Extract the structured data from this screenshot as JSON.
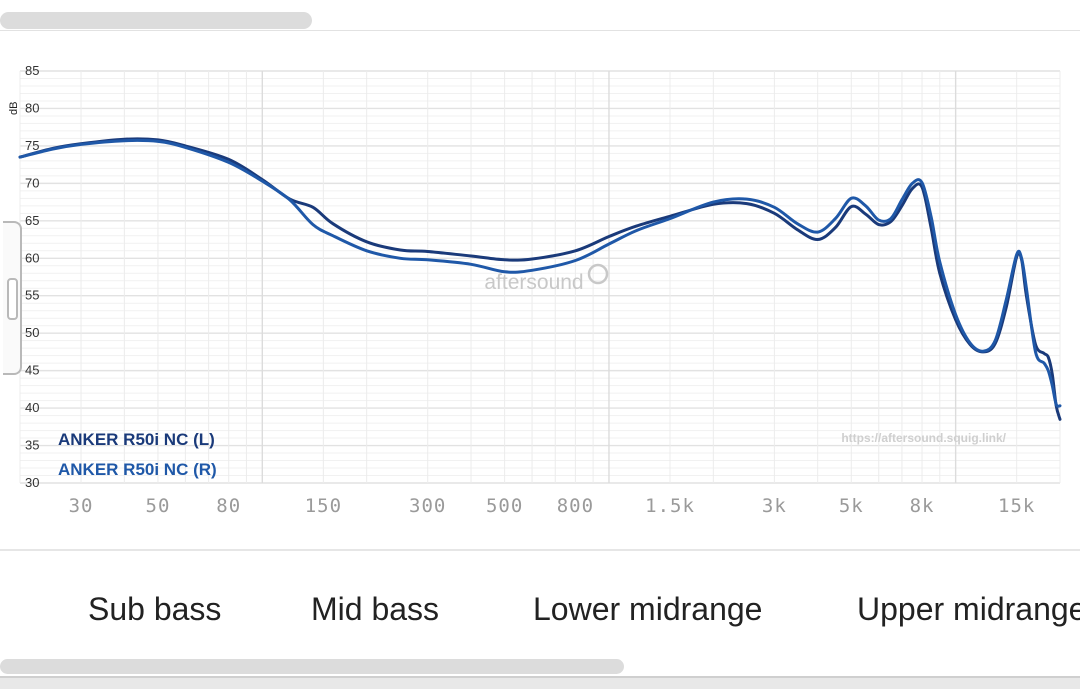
{
  "chart_data": {
    "type": "line",
    "title": "",
    "ylabel": "dB",
    "xlabel": "",
    "x_scale": "log",
    "ylim": [
      30,
      85
    ],
    "xlim": [
      20,
      20000
    ],
    "y_ticks": [
      "85",
      "80",
      "75",
      "70",
      "65",
      "60",
      "55",
      "50",
      "45",
      "40",
      "35",
      "30"
    ],
    "y_tick_values": [
      85,
      80,
      75,
      70,
      65,
      60,
      55,
      50,
      45,
      40,
      35,
      30
    ],
    "x_ticks": [
      "30",
      "50",
      "80",
      "150",
      "300",
      "500",
      "800",
      "1.5k",
      "3k",
      "5k",
      "8k",
      "15k"
    ],
    "x_tick_values": [
      30,
      50,
      80,
      150,
      300,
      500,
      800,
      1500,
      3000,
      5000,
      8000,
      15000
    ],
    "watermark": "aftersound",
    "source_url": "https://aftersound.squig.link/",
    "series": [
      {
        "name": "ANKER R50i NC (L)",
        "color": "#1a3a7a",
        "points": [
          [
            20,
            73.5
          ],
          [
            25,
            74.7
          ],
          [
            30,
            75.3
          ],
          [
            40,
            75.9
          ],
          [
            50,
            75.8
          ],
          [
            60,
            75.0
          ],
          [
            80,
            73.2
          ],
          [
            100,
            70.5
          ],
          [
            120,
            67.9
          ],
          [
            140,
            66.8
          ],
          [
            160,
            64.6
          ],
          [
            200,
            62.2
          ],
          [
            250,
            61.1
          ],
          [
            300,
            60.9
          ],
          [
            400,
            60.3
          ],
          [
            500,
            59.8
          ],
          [
            600,
            59.9
          ],
          [
            800,
            61.0
          ],
          [
            1000,
            62.9
          ],
          [
            1200,
            64.3
          ],
          [
            1500,
            65.6
          ],
          [
            2000,
            67.2
          ],
          [
            2500,
            67.3
          ],
          [
            3000,
            66.0
          ],
          [
            3500,
            63.8
          ],
          [
            4000,
            62.5
          ],
          [
            4500,
            64.1
          ],
          [
            5000,
            66.9
          ],
          [
            5500,
            65.9
          ],
          [
            6000,
            64.5
          ],
          [
            6500,
            64.9
          ],
          [
            7000,
            67.0
          ],
          [
            7500,
            69.3
          ],
          [
            8000,
            69.5
          ],
          [
            8500,
            64.0
          ],
          [
            9000,
            58.0
          ],
          [
            10000,
            51.8
          ],
          [
            11000,
            48.5
          ],
          [
            12000,
            47.5
          ],
          [
            13000,
            48.6
          ],
          [
            14000,
            53.5
          ],
          [
            15000,
            60.2
          ],
          [
            15500,
            59.8
          ],
          [
            16000,
            55.0
          ],
          [
            17000,
            48.5
          ],
          [
            18000,
            47.3
          ],
          [
            18500,
            46.8
          ],
          [
            19000,
            44.5
          ],
          [
            19500,
            40.3
          ],
          [
            20000,
            38.5
          ]
        ]
      },
      {
        "name": "ANKER R50i NC (R)",
        "color": "#1f58a8",
        "points": [
          [
            20,
            73.5
          ],
          [
            25,
            74.6
          ],
          [
            30,
            75.2
          ],
          [
            40,
            75.7
          ],
          [
            50,
            75.6
          ],
          [
            60,
            74.8
          ],
          [
            80,
            72.8
          ],
          [
            100,
            70.3
          ],
          [
            120,
            67.8
          ],
          [
            140,
            64.5
          ],
          [
            160,
            63.0
          ],
          [
            200,
            61.0
          ],
          [
            250,
            60.0
          ],
          [
            300,
            59.8
          ],
          [
            400,
            59.2
          ],
          [
            500,
            58.2
          ],
          [
            600,
            58.4
          ],
          [
            800,
            59.7
          ],
          [
            1000,
            61.9
          ],
          [
            1200,
            63.7
          ],
          [
            1500,
            65.3
          ],
          [
            2000,
            67.5
          ],
          [
            2500,
            67.9
          ],
          [
            3000,
            66.8
          ],
          [
            3500,
            64.6
          ],
          [
            4000,
            63.5
          ],
          [
            4500,
            65.3
          ],
          [
            5000,
            68.0
          ],
          [
            5500,
            67.0
          ],
          [
            6000,
            65.1
          ],
          [
            6500,
            65.3
          ],
          [
            7000,
            67.8
          ],
          [
            7500,
            70.0
          ],
          [
            8000,
            70.1
          ],
          [
            8500,
            65.5
          ],
          [
            9000,
            59.5
          ],
          [
            10000,
            52.5
          ],
          [
            11000,
            48.7
          ],
          [
            12000,
            47.6
          ],
          [
            13000,
            49.0
          ],
          [
            14000,
            54.5
          ],
          [
            15000,
            60.5
          ],
          [
            15500,
            60.0
          ],
          [
            16000,
            56.0
          ],
          [
            17000,
            47.5
          ],
          [
            18000,
            46.0
          ],
          [
            18500,
            45.0
          ],
          [
            19000,
            43.0
          ],
          [
            19500,
            40.5
          ],
          [
            20000,
            40.3
          ]
        ]
      }
    ]
  },
  "bands": {
    "sub_bass": "Sub bass",
    "mid_bass": "Mid bass",
    "lower_midrange": "Lower midrange",
    "upper_midrange": "Upper midrange"
  }
}
